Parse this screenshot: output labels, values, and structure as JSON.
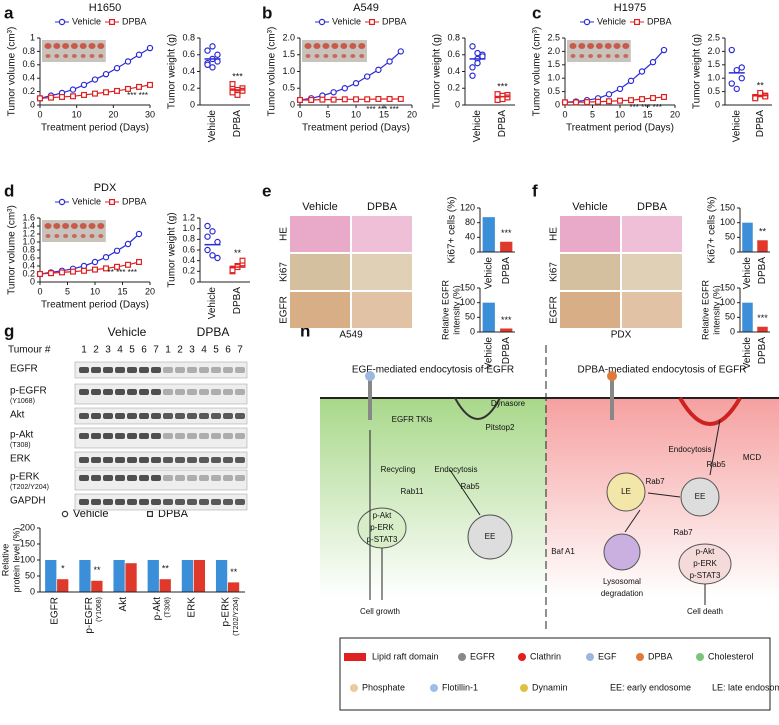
{
  "chart_data": [
    {
      "type": "line",
      "title": "H1650",
      "xlabel": "Treatment period (Days)",
      "ylabel": "Tumor volume (cm³)",
      "xlim": [
        0,
        30
      ],
      "xticks": [
        0,
        10,
        20,
        30
      ],
      "ylim": [
        0,
        1
      ],
      "yticks": [
        0,
        0.2,
        0.4,
        0.6,
        0.8,
        1
      ],
      "x": [
        0,
        3,
        6,
        9,
        12,
        15,
        18,
        21,
        24,
        27,
        30
      ],
      "series": [
        {
          "name": "Vehicle",
          "color": "#2b2bd9",
          "values": [
            0.1,
            0.14,
            0.18,
            0.23,
            0.3,
            0.38,
            0.46,
            0.55,
            0.65,
            0.75,
            0.85
          ]
        },
        {
          "name": "DPBA",
          "color": "#e02020",
          "values": [
            0.1,
            0.11,
            0.12,
            0.13,
            0.15,
            0.17,
            0.19,
            0.21,
            0.24,
            0.27,
            0.3
          ]
        }
      ],
      "annotation": "*** ***"
    },
    {
      "type": "dot",
      "ylabel": "Tumor weight (g)",
      "categories": [
        "Vehicle",
        "DPBA"
      ],
      "colors": [
        "#2b2bd9",
        "#e02020"
      ],
      "values": [
        0.55,
        0.18
      ],
      "points": [
        [
          0.5,
          0.55,
          0.6,
          0.65,
          0.45,
          0.52,
          0.48,
          0.7
        ],
        [
          0.15,
          0.18,
          0.2,
          0.22,
          0.14,
          0.17,
          0.25,
          0.12
        ]
      ],
      "ylim": [
        0,
        0.8
      ],
      "yticks": [
        0,
        0.2,
        0.4,
        0.6,
        0.8
      ],
      "annotation": "***"
    },
    {
      "type": "line",
      "title": "A549",
      "xlabel": "Treatment period (Days)",
      "ylabel": "Tumor volume (cm³)",
      "xlim": [
        0,
        20
      ],
      "xticks": [
        0,
        5,
        10,
        15,
        20
      ],
      "ylim": [
        0,
        2
      ],
      "yticks": [
        0,
        0.5,
        {
          "value": 1,
          "label": "1.0"
        },
        1.5,
        {
          "value": 2,
          "label": "2.0"
        }
      ],
      "x": [
        0,
        2,
        4,
        6,
        8,
        10,
        12,
        14,
        16,
        18
      ],
      "series": [
        {
          "name": "Vehicle",
          "color": "#2b2bd9",
          "values": [
            0.15,
            0.2,
            0.28,
            0.38,
            0.5,
            0.65,
            0.85,
            1.05,
            1.3,
            1.6
          ]
        },
        {
          "name": "DPBA",
          "color": "#e02020",
          "values": [
            0.15,
            0.15,
            0.16,
            0.16,
            0.17,
            0.17,
            0.17,
            0.18,
            0.18,
            0.18
          ]
        }
      ],
      "annotation": "*** *** ***"
    },
    {
      "type": "dot",
      "ylabel": "Tumor weight (g)",
      "categories": [
        "Vehicle",
        "DPBA"
      ],
      "colors": [
        "#2b2bd9",
        "#e02020"
      ],
      "values": [
        0.55,
        0.1
      ],
      "points": [
        [
          0.45,
          0.55,
          0.6,
          0.7,
          0.5,
          0.58,
          0.35,
          0.62
        ],
        [
          0.08,
          0.1,
          0.12,
          0.06,
          0.11,
          0.09,
          0.13,
          0.07
        ]
      ],
      "ylim": [
        0,
        0.8
      ],
      "yticks": [
        0,
        0.2,
        0.4,
        0.6,
        0.8
      ],
      "annotation": "***"
    },
    {
      "type": "line",
      "title": "H1975",
      "xlabel": "Treatment period (Days)",
      "ylabel": "Tumor volume (cm³)",
      "xlim": [
        0,
        20
      ],
      "xticks": [
        0,
        5,
        10,
        15,
        20
      ],
      "ylim": [
        0,
        2.5
      ],
      "yticks": [
        0,
        0.5,
        {
          "value": 1,
          "label": "1.0"
        },
        1.5,
        {
          "value": 2,
          "label": "2.0"
        },
        2.5
      ],
      "x": [
        0,
        2,
        4,
        6,
        8,
        10,
        12,
        14,
        16,
        18
      ],
      "series": [
        {
          "name": "Vehicle",
          "color": "#2b2bd9",
          "values": [
            0.1,
            0.13,
            0.18,
            0.25,
            0.4,
            0.6,
            0.9,
            1.25,
            1.6,
            2.05
          ]
        },
        {
          "name": "DPBA",
          "color": "#e02020",
          "values": [
            0.1,
            0.1,
            0.11,
            0.12,
            0.14,
            0.16,
            0.18,
            0.22,
            0.26,
            0.3
          ]
        }
      ],
      "annotation": "*** *** ***"
    },
    {
      "type": "dot",
      "ylabel": "Tumor weight (g)",
      "categories": [
        "Vehicle",
        "DPBA"
      ],
      "colors": [
        "#2b2bd9",
        "#e02020"
      ],
      "values": [
        1.2,
        0.35
      ],
      "points": [
        [
          2.05,
          1.3,
          1.0,
          0.8,
          0.6,
          1.4
        ],
        [
          0.3,
          0.4,
          0.35,
          0.25,
          0.45,
          0.32
        ]
      ],
      "ylim": [
        0,
        2.5
      ],
      "yticks": [
        0,
        0.5,
        {
          "value": 1,
          "label": "1.0"
        },
        1.5,
        {
          "value": 2,
          "label": "2.0"
        },
        2.5
      ],
      "annotation": "**"
    },
    {
      "type": "line",
      "title": "PDX",
      "xlabel": "Treatment period (Days)",
      "ylabel": "Tumor volume (cm³)",
      "xlim": [
        0,
        20
      ],
      "xticks": [
        0,
        5,
        10,
        15,
        20
      ],
      "ylim": [
        0,
        1.6
      ],
      "yticks": [
        0,
        0.2,
        0.4,
        0.6,
        0.8,
        {
          "value": 1,
          "label": "1.0"
        },
        1.2,
        1.4,
        1.6
      ],
      "x": [
        0,
        2,
        4,
        6,
        8,
        10,
        12,
        14,
        16,
        18
      ],
      "series": [
        {
          "name": "Vehicle",
          "color": "#2b2bd9",
          "values": [
            0.2,
            0.24,
            0.28,
            0.33,
            0.4,
            0.5,
            0.62,
            0.78,
            0.95,
            1.2
          ]
        },
        {
          "name": "DPBA",
          "color": "#e02020",
          "values": [
            0.2,
            0.22,
            0.24,
            0.26,
            0.28,
            0.31,
            0.34,
            0.38,
            0.43,
            0.5
          ]
        }
      ],
      "annotation": "** *** ***"
    },
    {
      "type": "dot",
      "ylabel": "Tumor weight (g)",
      "categories": [
        "Vehicle",
        "DPBA"
      ],
      "colors": [
        "#2b2bd9",
        "#e02020"
      ],
      "values": [
        0.7,
        0.28
      ],
      "points": [
        [
          1.05,
          0.95,
          0.75,
          0.6,
          0.5,
          0.45,
          0.85
        ],
        [
          0.25,
          0.3,
          0.35,
          0.2,
          0.28,
          0.4,
          0.22
        ]
      ],
      "ylim": [
        0,
        1.2
      ],
      "yticks": [
        0,
        0.2,
        0.4,
        0.6,
        0.8,
        {
          "value": 1,
          "label": "1.0"
        },
        1.2
      ],
      "annotation": "**"
    },
    {
      "type": "bar",
      "ylabel": "Ki67+ cells (%)",
      "categories": [
        "Vehicle",
        "DPBA"
      ],
      "colors": [
        "#3a8fd8",
        "#e0392b"
      ],
      "values": [
        95,
        28
      ],
      "ylim": [
        0,
        120
      ],
      "yticks": [
        0,
        40,
        80,
        120
      ],
      "annotation": "***"
    },
    {
      "type": "bar",
      "ylabel": [
        "Relative EGFR",
        "intensity (%)"
      ],
      "categories": [
        "Vehicle",
        "DPBA"
      ],
      "colors": [
        "#3a8fd8",
        "#e0392b"
      ],
      "values": [
        100,
        12
      ],
      "ylim": [
        0,
        150
      ],
      "yticks": [
        0,
        50,
        100,
        150
      ],
      "annotation": "***"
    },
    {
      "type": "bar",
      "ylabel": "Ki67+ cells (%)",
      "categories": [
        "Vehicle",
        "DPBA"
      ],
      "colors": [
        "#3a8fd8",
        "#e0392b"
      ],
      "values": [
        100,
        40
      ],
      "ylim": [
        0,
        150
      ],
      "yticks": [
        0,
        50,
        100,
        150
      ],
      "annotation": "**"
    },
    {
      "type": "bar",
      "ylabel": [
        "Relative EGFR",
        "intensity (%)"
      ],
      "categories": [
        "Vehicle",
        "DPBA"
      ],
      "colors": [
        "#3a8fd8",
        "#e0392b"
      ],
      "values": [
        100,
        18
      ],
      "ylim": [
        0,
        150
      ],
      "yticks": [
        0,
        50,
        100,
        150
      ],
      "annotation": "***"
    },
    {
      "type": "groupbar",
      "ylabel": [
        "Relative",
        "protein level (%)"
      ],
      "categories": [
        "EGFR",
        "p-EGFR",
        "Akt",
        "p-Akt",
        "ERK",
        "p-ERK"
      ],
      "category_notes": [
        null,
        "(Y1068)",
        null,
        "(T308)",
        null,
        "(T202/Y204)"
      ],
      "series": [
        {
          "name": "Vehicle",
          "color": "#3a8fd8",
          "values": [
            100,
            100,
            100,
            100,
            100,
            100
          ]
        },
        {
          "name": "DPBA",
          "color": "#e0392b",
          "values": [
            40,
            35,
            90,
            40,
            100,
            30
          ]
        }
      ],
      "ylim": [
        0,
        200
      ],
      "yticks": [
        0,
        50,
        100,
        150,
        200
      ],
      "annotations": [
        "*",
        "**",
        null,
        "**",
        null,
        "**"
      ]
    }
  ],
  "figure": {
    "panel_labels": [
      "a",
      "b",
      "c",
      "d",
      "e",
      "f",
      "g",
      "h"
    ],
    "histology": [
      {
        "columns": [
          "Vehicle",
          "DPBA"
        ],
        "rows": [
          "HE",
          "Ki67",
          "EGFR"
        ],
        "caption": "A549"
      },
      {
        "columns": [
          "Vehicle",
          "DPBA"
        ],
        "rows": [
          "HE",
          "Ki67",
          "EGFR"
        ],
        "caption": "PDX"
      }
    ],
    "blot": {
      "header": "Tumour #",
      "groups": [
        "Vehicle",
        "DPBA"
      ],
      "lanes": [
        "1",
        "2",
        "3",
        "4",
        "5",
        "6",
        "7"
      ],
      "rows": [
        {
          "name": "EGFR"
        },
        {
          "name": "p-EGFR",
          "site": "(Y1068)"
        },
        {
          "name": "Akt"
        },
        {
          "name": "p-Akt",
          "site": "(T308)"
        },
        {
          "name": "ERK"
        },
        {
          "name": "p-ERK",
          "site": "(T202/Y204)"
        },
        {
          "name": "GAPDH"
        }
      ]
    },
    "diagram": {
      "titles": [
        "EGF-mediated endocytosis of EGFR",
        "DPBA-mediated endocytosis of EGFR"
      ],
      "labels": [
        "Dynasore",
        "Pitstop2",
        "EGFR TKIs",
        "Recycling",
        "Endocytosis",
        "Rab11",
        "Rab5",
        "EE",
        "p-Akt",
        "p-ERK",
        "p-STAT3",
        "Cell growth",
        "MCD",
        "Endocytosis",
        "Rab5",
        "LE",
        "EE",
        "Rab7",
        "Rab7",
        "Baf A1",
        "Lysosomal",
        "degradation",
        "p-Akt",
        "p-ERK",
        "p-STAT3",
        "Cell death"
      ],
      "legend": [
        "Lipid raft domain",
        "EGFR",
        "Clathrin",
        "EGF",
        "DPBA",
        "Cholesterol",
        "Phosphate",
        "Flotillin-1",
        "Dynamin",
        "EE: early endosome",
        "LE: late endosome"
      ]
    }
  }
}
